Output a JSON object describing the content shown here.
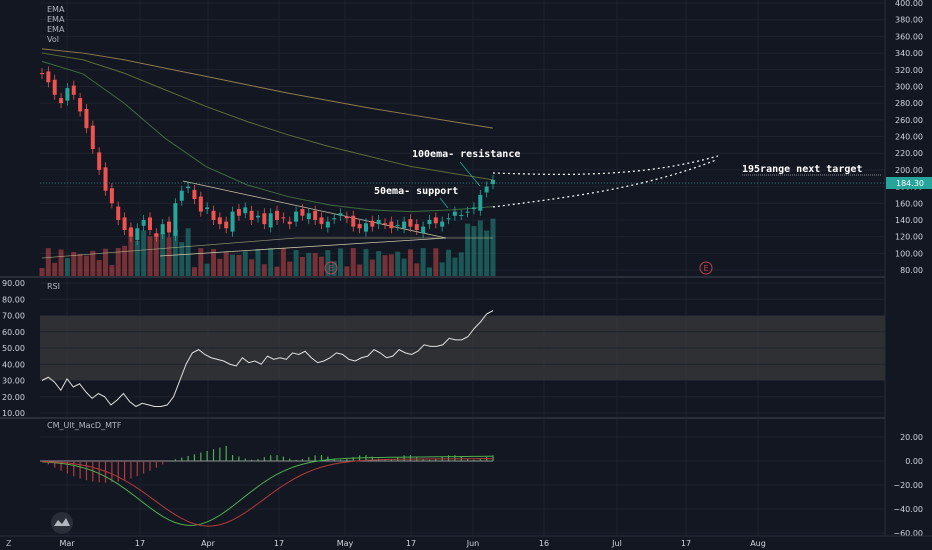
{
  "chart_data": [
    {
      "type": "candlestick",
      "panel": "price",
      "legend": [
        "EMA",
        "EMA",
        "EMA",
        "Vol"
      ],
      "y_ticks": [
        "400.00",
        "380.00",
        "360.00",
        "340.00",
        "320.00",
        "300.00",
        "280.00",
        "260.00",
        "240.00",
        "220.00",
        "200.00",
        "180.00",
        "160.00",
        "140.00",
        "120.00",
        "100.00",
        "80.00"
      ],
      "ylim": [
        80,
        400
      ],
      "last_price": "184.30",
      "earnings_markers": [
        "E",
        "E"
      ],
      "annotations": [
        {
          "text": "100ema- resistance"
        },
        {
          "text": "50ema- support"
        },
        {
          "text": "195range next target"
        }
      ],
      "ema_200": [
        345,
        340,
        332,
        322,
        312,
        302,
        292,
        283,
        274,
        266,
        258,
        250
      ],
      "ema_100": [
        340,
        332,
        316,
        296,
        276,
        258,
        242,
        228,
        216,
        204,
        196,
        188
      ],
      "ema_50": [
        330,
        315,
        280,
        238,
        204,
        182,
        168,
        158,
        152,
        150,
        152,
        156
      ]
    },
    {
      "type": "line",
      "panel": "rsi",
      "name": "RSI",
      "y_ticks": [
        "90.00",
        "80.00",
        "70.00",
        "60.00",
        "50.00",
        "40.00",
        "30.00",
        "20.00",
        "10.00"
      ],
      "ylim": [
        10,
        90
      ],
      "band": [
        30,
        70
      ],
      "values": [
        30,
        32,
        29,
        24,
        31,
        26,
        28,
        23,
        19,
        22,
        20,
        15,
        18,
        22,
        17,
        14,
        16,
        15,
        14,
        14,
        15,
        20,
        30,
        40,
        47,
        49,
        46,
        44,
        43,
        42,
        40,
        39,
        44,
        41,
        42,
        40,
        45,
        43,
        44,
        43,
        47,
        46,
        48,
        44,
        41,
        42,
        44,
        47,
        46,
        43,
        42,
        44,
        45,
        49,
        47,
        44,
        45,
        49,
        47,
        46,
        48,
        52,
        51,
        51,
        52,
        56,
        55,
        55,
        57,
        62,
        66,
        71,
        73
      ]
    },
    {
      "type": "bar",
      "panel": "macd",
      "name": "CM_Ult_MacD_MTF",
      "y_ticks": [
        "20.00",
        "0.00",
        "−20.00",
        "−40.00",
        "−60.00"
      ],
      "ylim": [
        -63,
        28
      ]
    }
  ],
  "x_ticks": [
    "Mar",
    "17",
    "Apr",
    "17",
    "May",
    "17",
    "Jun",
    "16",
    "Jul",
    "17",
    "Aug"
  ],
  "tv_logo": "tradingview-logo",
  "footer_left": "Z"
}
